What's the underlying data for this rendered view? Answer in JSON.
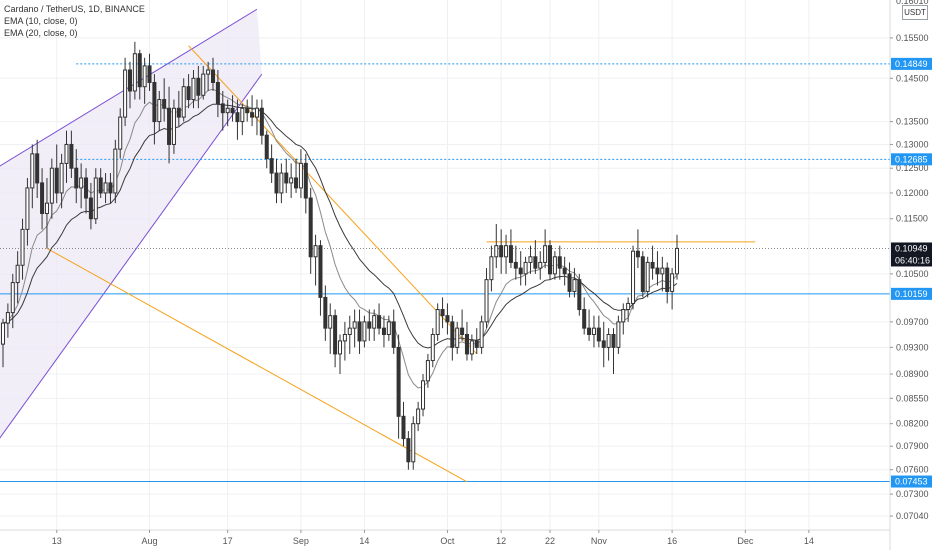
{
  "legend": {
    "title": "Cardano / TetherUS, 1D, BINANCE",
    "ema10": "EMA (10, close, 0)",
    "ema20": "EMA (20, close, 0)"
  },
  "currency_button": "USDT",
  "colors": {
    "candle_body": "#333333",
    "ema10": "#8a8a8a",
    "ema20": "#3a3a3a",
    "orange_line": "#f7a21b",
    "blue_line": "#2196f3",
    "purple_channel": "#7b4fd6",
    "channel_fill": "#ece8f6",
    "badge_dark": "#131722"
  },
  "chart_data": {
    "type": "candlestick",
    "symbol": "Cardano / TetherUS",
    "timeframe": "1D",
    "exchange": "BINANCE",
    "x_start_date": "2020-07-02",
    "x_end_date": "2020-12-30",
    "x_ticks": [
      {
        "label": "13",
        "date": "2020-07-13"
      },
      {
        "label": "Aug",
        "date": "2020-08-01"
      },
      {
        "label": "17",
        "date": "2020-08-17"
      },
      {
        "label": "Sep",
        "date": "2020-09-01"
      },
      {
        "label": "14",
        "date": "2020-09-14"
      },
      {
        "label": "Oct",
        "date": "2020-10-01"
      },
      {
        "label": "12",
        "date": "2020-10-12"
      },
      {
        "label": "22",
        "date": "2020-10-22"
      },
      {
        "label": "Nov",
        "date": "2020-11-01"
      },
      {
        "label": "16",
        "date": "2020-11-16"
      },
      {
        "label": "Dec",
        "date": "2020-12-01"
      },
      {
        "label": "14",
        "date": "2020-12-14"
      }
    ],
    "y_scale": "log",
    "ylim": [
      0.0688,
      0.165
    ],
    "y_ticks": [
      0.155,
      0.145,
      0.135,
      0.13,
      0.125,
      0.12,
      0.115,
      0.105,
      0.097,
      0.093,
      0.089,
      0.0855,
      0.082,
      0.079,
      0.076,
      0.073,
      0.0704
    ],
    "y_tick_labels": [
      "0.15500",
      "0.14500",
      "0.13500",
      "0.13000",
      "0.12500",
      "0.12000",
      "0.11500",
      "0.10500",
      "0.09700",
      "0.09300",
      "0.08900",
      "0.08550",
      "0.08200",
      "0.07900",
      "0.07600",
      "0.07300",
      "0.07040"
    ],
    "top_partial_label": "0.16010",
    "price_badges": [
      {
        "value": 0.14849,
        "label": "0.14849",
        "color": "#2196f3"
      },
      {
        "value": 0.12685,
        "label": "0.12685",
        "color": "#2196f3"
      },
      {
        "value": 0.10949,
        "label": "0.10949",
        "color": "#131722"
      },
      {
        "value": 0.10159,
        "label": "0.10159",
        "color": "#2196f3"
      },
      {
        "value": 0.07453,
        "label": "0.07453",
        "color": "#2196f3"
      }
    ],
    "countdown": "06:40:16",
    "horizontal_lines": [
      {
        "value": 0.14849,
        "style": "dotted",
        "color": "#2196f3"
      },
      {
        "value": 0.12685,
        "style": "dotted",
        "color": "#2196f3"
      },
      {
        "value": 0.10159,
        "style": "solid",
        "color": "#2196f3"
      },
      {
        "value": 0.07453,
        "style": "solid",
        "color": "#2196f3"
      },
      {
        "value": 0.10949,
        "style": "dotted",
        "color": "#888888"
      }
    ],
    "trendlines": [
      {
        "from": [
          "2020-08-09",
          0.153
        ],
        "to": [
          "2020-10-07",
          0.092
        ],
        "color": "#f7a21b"
      },
      {
        "from": [
          "2020-07-11",
          0.1095
        ],
        "to": [
          "2020-10-05",
          0.0745
        ],
        "color": "#f7a21b"
      },
      {
        "from": [
          "2020-10-09",
          0.1107
        ],
        "to": [
          "2020-12-03",
          0.1107
        ],
        "color": "#f7a21b"
      }
    ],
    "channel": {
      "upper": [
        [
          "2020-06-29",
          0.124
        ],
        [
          "2020-08-23",
          0.1625
        ]
      ],
      "lower": [
        [
          "2020-06-29",
          0.078
        ],
        [
          "2020-08-24",
          0.146
        ]
      ],
      "color": "#7b4fd6",
      "fill": "#ece8f6"
    },
    "candles": [
      [
        "2020-07-02",
        0.0935,
        0.0975,
        0.09,
        0.0968
      ],
      [
        "2020-07-03",
        0.0968,
        0.1,
        0.0945,
        0.0985
      ],
      [
        "2020-07-04",
        0.0985,
        0.105,
        0.096,
        0.1035
      ],
      [
        "2020-07-05",
        0.1035,
        0.109,
        0.1,
        0.1065
      ],
      [
        "2020-07-06",
        0.1065,
        0.115,
        0.104,
        0.113
      ],
      [
        "2020-07-07",
        0.113,
        0.123,
        0.11,
        0.121
      ],
      [
        "2020-07-08",
        0.121,
        0.13,
        0.117,
        0.128
      ],
      [
        "2020-07-09",
        0.128,
        0.131,
        0.119,
        0.122
      ],
      [
        "2020-07-10",
        0.122,
        0.125,
        0.113,
        0.116
      ],
      [
        "2020-07-11",
        0.116,
        0.123,
        0.1095,
        0.118
      ],
      [
        "2020-07-12",
        0.118,
        0.127,
        0.115,
        0.125
      ],
      [
        "2020-07-13",
        0.125,
        0.13,
        0.118,
        0.12
      ],
      [
        "2020-07-14",
        0.12,
        0.128,
        0.117,
        0.126
      ],
      [
        "2020-07-15",
        0.126,
        0.133,
        0.122,
        0.13
      ],
      [
        "2020-07-16",
        0.13,
        0.133,
        0.123,
        0.125
      ],
      [
        "2020-07-17",
        0.125,
        0.129,
        0.118,
        0.121
      ],
      [
        "2020-07-18",
        0.121,
        0.126,
        0.117,
        0.123
      ],
      [
        "2020-07-19",
        0.123,
        0.125,
        0.116,
        0.119
      ],
      [
        "2020-07-20",
        0.119,
        0.122,
        0.113,
        0.115
      ],
      [
        "2020-07-21",
        0.115,
        0.125,
        0.114,
        0.123
      ],
      [
        "2020-07-22",
        0.123,
        0.125,
        0.119,
        0.12
      ],
      [
        "2020-07-23",
        0.12,
        0.124,
        0.118,
        0.122
      ],
      [
        "2020-07-24",
        0.122,
        0.124,
        0.118,
        0.12
      ],
      [
        "2020-07-25",
        0.12,
        0.131,
        0.118,
        0.129
      ],
      [
        "2020-07-26",
        0.129,
        0.138,
        0.127,
        0.136
      ],
      [
        "2020-07-27",
        0.136,
        0.15,
        0.134,
        0.147
      ],
      [
        "2020-07-28",
        0.147,
        0.149,
        0.138,
        0.142
      ],
      [
        "2020-07-29",
        0.142,
        0.154,
        0.14,
        0.151
      ],
      [
        "2020-07-30",
        0.151,
        0.152,
        0.14,
        0.143
      ],
      [
        "2020-07-31",
        0.143,
        0.15,
        0.139,
        0.148
      ],
      [
        "2020-08-01",
        0.148,
        0.151,
        0.142,
        0.144
      ],
      [
        "2020-08-02",
        0.144,
        0.146,
        0.13,
        0.135
      ],
      [
        "2020-08-03",
        0.135,
        0.142,
        0.133,
        0.14
      ],
      [
        "2020-08-04",
        0.14,
        0.145,
        0.135,
        0.138
      ],
      [
        "2020-08-05",
        0.138,
        0.143,
        0.126,
        0.13
      ],
      [
        "2020-08-06",
        0.13,
        0.14,
        0.128,
        0.138
      ],
      [
        "2020-08-07",
        0.138,
        0.142,
        0.134,
        0.136
      ],
      [
        "2020-08-08",
        0.136,
        0.145,
        0.135,
        0.143
      ],
      [
        "2020-08-09",
        0.143,
        0.146,
        0.138,
        0.14
      ],
      [
        "2020-08-10",
        0.14,
        0.147,
        0.138,
        0.145
      ],
      [
        "2020-08-11",
        0.145,
        0.148,
        0.138,
        0.141
      ],
      [
        "2020-08-12",
        0.141,
        0.148,
        0.14,
        0.146
      ],
      [
        "2020-08-13",
        0.146,
        0.149,
        0.142,
        0.147
      ],
      [
        "2020-08-14",
        0.147,
        0.15,
        0.142,
        0.144
      ],
      [
        "2020-08-15",
        0.144,
        0.147,
        0.136,
        0.139
      ],
      [
        "2020-08-16",
        0.139,
        0.142,
        0.133,
        0.137
      ],
      [
        "2020-08-17",
        0.137,
        0.14,
        0.134,
        0.138
      ],
      [
        "2020-08-18",
        0.138,
        0.141,
        0.135,
        0.137
      ],
      [
        "2020-08-19",
        0.137,
        0.14,
        0.131,
        0.135
      ],
      [
        "2020-08-20",
        0.135,
        0.139,
        0.132,
        0.138
      ],
      [
        "2020-08-21",
        0.138,
        0.14,
        0.135,
        0.137
      ],
      [
        "2020-08-22",
        0.137,
        0.141,
        0.134,
        0.136
      ],
      [
        "2020-08-23",
        0.136,
        0.14,
        0.132,
        0.138
      ],
      [
        "2020-08-24",
        0.138,
        0.14,
        0.13,
        0.132
      ],
      [
        "2020-08-25",
        0.132,
        0.133,
        0.125,
        0.127
      ],
      [
        "2020-08-26",
        0.127,
        0.13,
        0.122,
        0.124
      ],
      [
        "2020-08-27",
        0.124,
        0.127,
        0.118,
        0.12
      ],
      [
        "2020-08-28",
        0.12,
        0.126,
        0.118,
        0.124
      ],
      [
        "2020-08-29",
        0.124,
        0.127,
        0.12,
        0.122
      ],
      [
        "2020-08-30",
        0.122,
        0.126,
        0.119,
        0.123
      ],
      [
        "2020-08-31",
        0.123,
        0.127,
        0.12,
        0.121
      ],
      [
        "2020-09-01",
        0.121,
        0.129,
        0.119,
        0.126
      ],
      [
        "2020-09-02",
        0.126,
        0.128,
        0.116,
        0.119
      ],
      [
        "2020-09-03",
        0.119,
        0.121,
        0.105,
        0.108
      ],
      [
        "2020-09-04",
        0.108,
        0.112,
        0.103,
        0.11
      ],
      [
        "2020-09-05",
        0.11,
        0.111,
        0.098,
        0.101
      ],
      [
        "2020-09-06",
        0.101,
        0.103,
        0.094,
        0.096
      ],
      [
        "2020-09-07",
        0.096,
        0.1,
        0.092,
        0.098
      ],
      [
        "2020-09-08",
        0.098,
        0.099,
        0.09,
        0.092
      ],
      [
        "2020-09-09",
        0.092,
        0.095,
        0.089,
        0.094
      ],
      [
        "2020-09-10",
        0.094,
        0.097,
        0.091,
        0.095
      ],
      [
        "2020-09-11",
        0.095,
        0.098,
        0.092,
        0.096
      ],
      [
        "2020-09-12",
        0.096,
        0.099,
        0.093,
        0.097
      ],
      [
        "2020-09-13",
        0.097,
        0.099,
        0.092,
        0.094
      ],
      [
        "2020-09-14",
        0.094,
        0.098,
        0.093,
        0.097
      ],
      [
        "2020-09-15",
        0.097,
        0.099,
        0.094,
        0.096
      ],
      [
        "2020-09-16",
        0.096,
        0.099,
        0.094,
        0.098
      ],
      [
        "2020-09-17",
        0.098,
        0.1,
        0.095,
        0.096
      ],
      [
        "2020-09-18",
        0.096,
        0.098,
        0.093,
        0.095
      ],
      [
        "2020-09-19",
        0.095,
        0.098,
        0.094,
        0.097
      ],
      [
        "2020-09-20",
        0.097,
        0.099,
        0.092,
        0.093
      ],
      [
        "2020-09-21",
        0.093,
        0.095,
        0.08,
        0.083
      ],
      [
        "2020-09-22",
        0.083,
        0.085,
        0.079,
        0.08
      ],
      [
        "2020-09-23",
        0.08,
        0.081,
        0.076,
        0.077
      ],
      [
        "2020-09-24",
        0.077,
        0.083,
        0.076,
        0.082
      ],
      [
        "2020-09-25",
        0.082,
        0.085,
        0.081,
        0.084
      ],
      [
        "2020-09-26",
        0.084,
        0.089,
        0.083,
        0.088
      ],
      [
        "2020-09-27",
        0.088,
        0.092,
        0.087,
        0.091
      ],
      [
        "2020-09-28",
        0.091,
        0.096,
        0.09,
        0.095
      ],
      [
        "2020-09-29",
        0.095,
        0.1,
        0.094,
        0.099
      ],
      [
        "2020-09-30",
        0.099,
        0.101,
        0.096,
        0.098
      ],
      [
        "2020-10-01",
        0.098,
        0.1,
        0.095,
        0.097
      ],
      [
        "2020-10-02",
        0.097,
        0.098,
        0.091,
        0.093
      ],
      [
        "2020-10-03",
        0.093,
        0.097,
        0.092,
        0.096
      ],
      [
        "2020-10-04",
        0.096,
        0.099,
        0.094,
        0.095
      ],
      [
        "2020-10-05",
        0.095,
        0.097,
        0.091,
        0.092
      ],
      [
        "2020-10-06",
        0.092,
        0.095,
        0.091,
        0.094
      ],
      [
        "2020-10-07",
        0.094,
        0.096,
        0.092,
        0.093
      ],
      [
        "2020-10-08",
        0.093,
        0.098,
        0.092,
        0.097
      ],
      [
        "2020-10-09",
        0.097,
        0.106,
        0.096,
        0.104
      ],
      [
        "2020-10-10",
        0.104,
        0.11,
        0.102,
        0.108
      ],
      [
        "2020-10-11",
        0.108,
        0.114,
        0.106,
        0.11
      ],
      [
        "2020-10-12",
        0.11,
        0.113,
        0.105,
        0.108
      ],
      [
        "2020-10-13",
        0.108,
        0.112,
        0.105,
        0.11
      ],
      [
        "2020-10-14",
        0.11,
        0.113,
        0.106,
        0.107
      ],
      [
        "2020-10-15",
        0.107,
        0.11,
        0.104,
        0.106
      ],
      [
        "2020-10-16",
        0.106,
        0.109,
        0.103,
        0.105
      ],
      [
        "2020-10-17",
        0.105,
        0.108,
        0.103,
        0.107
      ],
      [
        "2020-10-18",
        0.107,
        0.11,
        0.105,
        0.108
      ],
      [
        "2020-10-19",
        0.108,
        0.111,
        0.105,
        0.106
      ],
      [
        "2020-10-20",
        0.106,
        0.109,
        0.104,
        0.107
      ],
      [
        "2020-10-21",
        0.107,
        0.113,
        0.106,
        0.11
      ],
      [
        "2020-10-22",
        0.11,
        0.111,
        0.104,
        0.105
      ],
      [
        "2020-10-23",
        0.105,
        0.109,
        0.104,
        0.108
      ],
      [
        "2020-10-24",
        0.108,
        0.11,
        0.104,
        0.106
      ],
      [
        "2020-10-25",
        0.106,
        0.108,
        0.103,
        0.105
      ],
      [
        "2020-10-26",
        0.105,
        0.107,
        0.101,
        0.102
      ],
      [
        "2020-10-27",
        0.102,
        0.106,
        0.101,
        0.104
      ],
      [
        "2020-10-28",
        0.104,
        0.105,
        0.098,
        0.099
      ],
      [
        "2020-10-29",
        0.099,
        0.101,
        0.095,
        0.096
      ],
      [
        "2020-10-30",
        0.096,
        0.099,
        0.094,
        0.095
      ],
      [
        "2020-10-31",
        0.095,
        0.098,
        0.093,
        0.096
      ],
      [
        "2020-11-01",
        0.096,
        0.098,
        0.093,
        0.094
      ],
      [
        "2020-11-02",
        0.094,
        0.097,
        0.09,
        0.093
      ],
      [
        "2020-11-03",
        0.093,
        0.096,
        0.091,
        0.095
      ],
      [
        "2020-11-04",
        0.095,
        0.096,
        0.089,
        0.093
      ],
      [
        "2020-11-05",
        0.093,
        0.098,
        0.092,
        0.097
      ],
      [
        "2020-11-06",
        0.097,
        0.1,
        0.095,
        0.099
      ],
      [
        "2020-11-07",
        0.099,
        0.101,
        0.097,
        0.1
      ],
      [
        "2020-11-08",
        0.1,
        0.11,
        0.099,
        0.109
      ],
      [
        "2020-11-09",
        0.109,
        0.113,
        0.106,
        0.108
      ],
      [
        "2020-11-10",
        0.108,
        0.109,
        0.101,
        0.102
      ],
      [
        "2020-11-11",
        0.102,
        0.108,
        0.101,
        0.107
      ],
      [
        "2020-11-12",
        0.107,
        0.11,
        0.104,
        0.106
      ],
      [
        "2020-11-13",
        0.106,
        0.109,
        0.103,
        0.105
      ],
      [
        "2020-11-14",
        0.105,
        0.108,
        0.102,
        0.106
      ],
      [
        "2020-11-15",
        0.106,
        0.107,
        0.1,
        0.102
      ],
      [
        "2020-11-16",
        0.102,
        0.106,
        0.099,
        0.105
      ],
      [
        "2020-11-17",
        0.105,
        0.112,
        0.104,
        0.1095
      ]
    ],
    "series": [
      {
        "name": "EMA (10, close, 0)",
        "period": 10,
        "color": "#8a8a8a"
      },
      {
        "name": "EMA (20, close, 0)",
        "period": 20,
        "color": "#3a3a3a"
      }
    ]
  }
}
